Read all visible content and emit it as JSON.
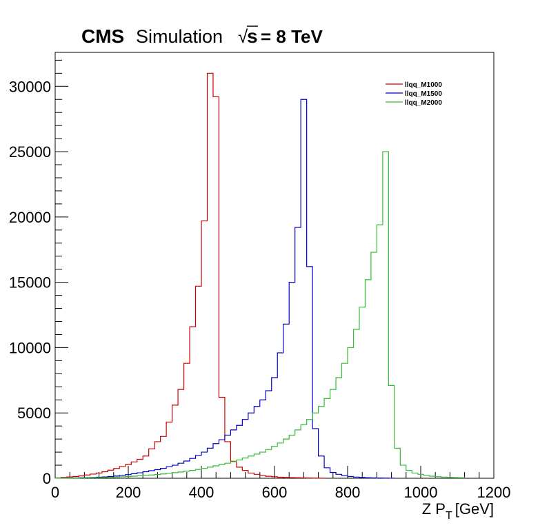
{
  "header": {
    "cms": "CMS",
    "simulation": "Simulation",
    "sqrt_symbol": "√",
    "sqrt_s": "s",
    "energy": "= 8 TeV"
  },
  "chart_data": {
    "type": "line",
    "style": "step-histogram",
    "xlabel_main": "Z P",
    "xlabel_sub": "T",
    "xlabel_unit": "[GeV]",
    "ylabel": "",
    "xlim": [
      0,
      1200
    ],
    "ylim": [
      0,
      32600
    ],
    "x_ticks": [
      0,
      200,
      400,
      600,
      800,
      1000,
      1200
    ],
    "y_ticks": [
      0,
      5000,
      10000,
      15000,
      20000,
      25000,
      30000
    ],
    "grid": false,
    "legend_position": "top-right",
    "bin_width": 16,
    "series": [
      {
        "name": "llqq_M1000",
        "color": "#cc0000",
        "bins": [
          [
            0,
            30
          ],
          [
            16,
            60
          ],
          [
            32,
            100
          ],
          [
            48,
            130
          ],
          [
            64,
            180
          ],
          [
            80,
            250
          ],
          [
            96,
            320
          ],
          [
            112,
            400
          ],
          [
            128,
            500
          ],
          [
            144,
            620
          ],
          [
            160,
            750
          ],
          [
            176,
            900
          ],
          [
            192,
            1050
          ],
          [
            208,
            1250
          ],
          [
            224,
            1450
          ],
          [
            240,
            1700
          ],
          [
            256,
            2250
          ],
          [
            272,
            2800
          ],
          [
            288,
            3200
          ],
          [
            304,
            4300
          ],
          [
            320,
            5600
          ],
          [
            336,
            6800
          ],
          [
            352,
            8800
          ],
          [
            368,
            11600
          ],
          [
            384,
            14700
          ],
          [
            400,
            19700
          ],
          [
            416,
            31000
          ],
          [
            432,
            29200
          ],
          [
            448,
            6200
          ],
          [
            464,
            2800
          ],
          [
            480,
            1300
          ],
          [
            496,
            850
          ],
          [
            512,
            600
          ],
          [
            528,
            400
          ],
          [
            544,
            300
          ],
          [
            560,
            200
          ],
          [
            576,
            150
          ],
          [
            592,
            120
          ],
          [
            608,
            80
          ],
          [
            624,
            60
          ],
          [
            640,
            50
          ],
          [
            656,
            40
          ],
          [
            672,
            30
          ],
          [
            688,
            20
          ],
          [
            704,
            15
          ],
          [
            720,
            10
          ]
        ]
      },
      {
        "name": "llqq_M1500",
        "color": "#0000cc",
        "bins": [
          [
            0,
            10
          ],
          [
            16,
            15
          ],
          [
            32,
            20
          ],
          [
            48,
            30
          ],
          [
            64,
            40
          ],
          [
            80,
            50
          ],
          [
            96,
            60
          ],
          [
            112,
            80
          ],
          [
            128,
            100
          ],
          [
            144,
            130
          ],
          [
            160,
            170
          ],
          [
            176,
            220
          ],
          [
            192,
            280
          ],
          [
            208,
            350
          ],
          [
            224,
            420
          ],
          [
            240,
            500
          ],
          [
            256,
            580
          ],
          [
            272,
            660
          ],
          [
            288,
            760
          ],
          [
            304,
            880
          ],
          [
            320,
            1000
          ],
          [
            336,
            1150
          ],
          [
            352,
            1320
          ],
          [
            368,
            1520
          ],
          [
            384,
            1750
          ],
          [
            400,
            2000
          ],
          [
            416,
            2300
          ],
          [
            432,
            2650
          ],
          [
            448,
            2950
          ],
          [
            464,
            3300
          ],
          [
            480,
            3700
          ],
          [
            496,
            4050
          ],
          [
            512,
            4500
          ],
          [
            528,
            5000
          ],
          [
            544,
            5500
          ],
          [
            560,
            6000
          ],
          [
            576,
            6700
          ],
          [
            592,
            7700
          ],
          [
            608,
            9600
          ],
          [
            624,
            11800
          ],
          [
            640,
            15000
          ],
          [
            656,
            19200
          ],
          [
            672,
            29000
          ],
          [
            688,
            16200
          ],
          [
            704,
            3800
          ],
          [
            720,
            1700
          ],
          [
            736,
            800
          ],
          [
            752,
            450
          ],
          [
            768,
            300
          ],
          [
            784,
            200
          ],
          [
            800,
            130
          ],
          [
            816,
            90
          ],
          [
            832,
            60
          ],
          [
            848,
            40
          ],
          [
            864,
            30
          ],
          [
            880,
            20
          ],
          [
            896,
            15
          ],
          [
            912,
            10
          ]
        ]
      },
      {
        "name": "llqq_M2000",
        "color": "#33bb33",
        "bins": [
          [
            0,
            5
          ],
          [
            16,
            10
          ],
          [
            32,
            15
          ],
          [
            48,
            20
          ],
          [
            64,
            25
          ],
          [
            80,
            30
          ],
          [
            96,
            40
          ],
          [
            112,
            50
          ],
          [
            128,
            60
          ],
          [
            144,
            70
          ],
          [
            160,
            90
          ],
          [
            176,
            110
          ],
          [
            192,
            130
          ],
          [
            208,
            160
          ],
          [
            224,
            190
          ],
          [
            240,
            220
          ],
          [
            256,
            250
          ],
          [
            272,
            290
          ],
          [
            288,
            330
          ],
          [
            304,
            380
          ],
          [
            320,
            430
          ],
          [
            336,
            480
          ],
          [
            352,
            540
          ],
          [
            368,
            600
          ],
          [
            384,
            680
          ],
          [
            400,
            760
          ],
          [
            416,
            850
          ],
          [
            432,
            950
          ],
          [
            448,
            1050
          ],
          [
            464,
            1150
          ],
          [
            480,
            1270
          ],
          [
            496,
            1400
          ],
          [
            512,
            1550
          ],
          [
            528,
            1700
          ],
          [
            544,
            1850
          ],
          [
            560,
            2000
          ],
          [
            576,
            2200
          ],
          [
            592,
            2450
          ],
          [
            608,
            2700
          ],
          [
            624,
            3000
          ],
          [
            640,
            3300
          ],
          [
            656,
            3700
          ],
          [
            672,
            4100
          ],
          [
            688,
            4500
          ],
          [
            704,
            5000
          ],
          [
            720,
            5500
          ],
          [
            736,
            6100
          ],
          [
            752,
            6800
          ],
          [
            768,
            7700
          ],
          [
            784,
            8800
          ],
          [
            800,
            10000
          ],
          [
            816,
            11400
          ],
          [
            832,
            13100
          ],
          [
            848,
            15200
          ],
          [
            864,
            17300
          ],
          [
            880,
            19400
          ],
          [
            896,
            25000
          ],
          [
            912,
            7100
          ],
          [
            928,
            2300
          ],
          [
            944,
            1000
          ],
          [
            960,
            600
          ],
          [
            976,
            400
          ],
          [
            992,
            300
          ],
          [
            1008,
            220
          ],
          [
            1024,
            160
          ],
          [
            1040,
            120
          ],
          [
            1056,
            90
          ],
          [
            1072,
            70
          ],
          [
            1088,
            50
          ],
          [
            1104,
            40
          ]
        ]
      }
    ]
  }
}
